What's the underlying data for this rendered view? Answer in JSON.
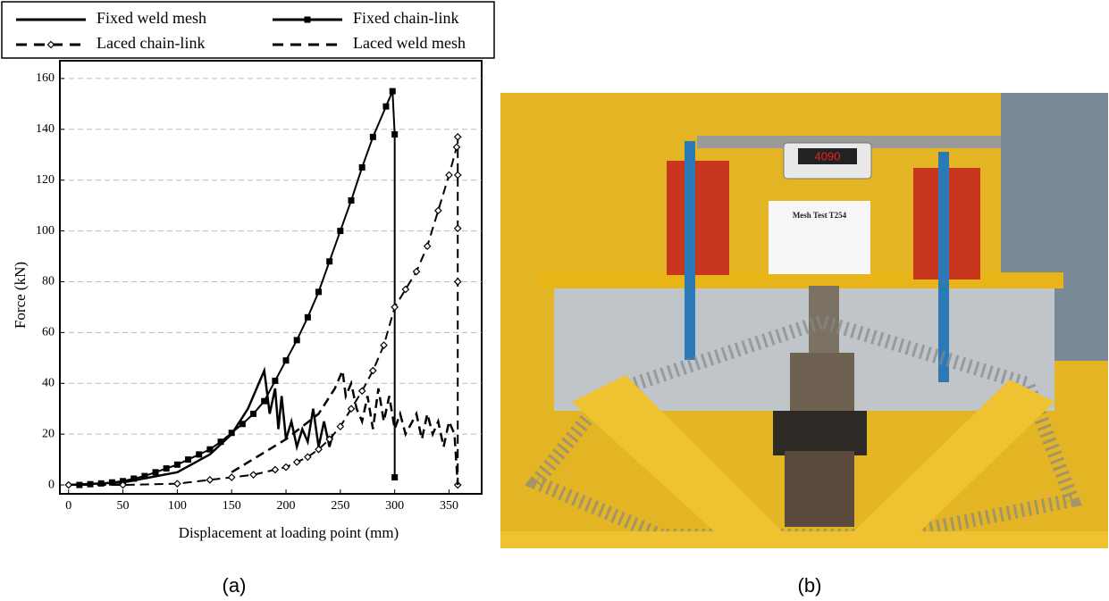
{
  "chart_data": {
    "type": "line",
    "xlabel": "Displacement at loading point (mm)",
    "ylabel": "Force (kN)",
    "xlim": [
      -8,
      380
    ],
    "ylim": [
      -3.5,
      167
    ],
    "xticks": [
      0,
      50,
      100,
      150,
      200,
      250,
      300,
      350
    ],
    "yticks": [
      0,
      20,
      40,
      60,
      80,
      100,
      120,
      140,
      160
    ],
    "grid": true,
    "series": [
      {
        "name": "Fixed weld mesh",
        "color": "#000000",
        "style": "solid",
        "x": [
          0,
          50,
          100,
          130,
          150,
          165,
          175,
          180,
          183,
          185,
          190,
          193,
          196,
          200,
          205,
          210,
          215,
          220,
          225,
          230,
          235,
          240,
          243
        ],
        "values": [
          0,
          1,
          5,
          12,
          20,
          30,
          40,
          45,
          35,
          28,
          38,
          22,
          35,
          18,
          25,
          15,
          22,
          17,
          30,
          15,
          25,
          15,
          20
        ]
      },
      {
        "name": "Fixed chain-link",
        "color": "#000000",
        "style": "solid",
        "marker": "square",
        "x": [
          10,
          20,
          30,
          40,
          50,
          60,
          70,
          80,
          90,
          100,
          110,
          120,
          130,
          140,
          150,
          160,
          170,
          180,
          190,
          200,
          210,
          220,
          230,
          240,
          250,
          260,
          270,
          280,
          292,
          298,
          300,
          300
        ],
        "values": [
          0,
          0.3,
          0.6,
          1,
          1.5,
          2.5,
          3.5,
          5,
          6.5,
          8,
          10,
          12,
          14,
          17,
          20.5,
          24,
          28,
          33,
          41,
          49,
          57,
          66,
          76,
          88,
          100,
          112,
          125,
          137,
          149,
          155,
          138,
          3
        ]
      },
      {
        "name": "Laced chain-link",
        "color": "#000000",
        "style": "dashed",
        "marker": "diamond",
        "x": [
          0,
          50,
          100,
          130,
          150,
          170,
          190,
          200,
          210,
          220,
          230,
          240,
          250,
          260,
          270,
          280,
          290,
          300,
          310,
          320,
          330,
          340,
          350,
          357,
          358,
          358,
          358,
          358,
          358
        ],
        "values": [
          0,
          0,
          0.5,
          2,
          3,
          4,
          6,
          7,
          9,
          11,
          14,
          18,
          23,
          30,
          37,
          45,
          55,
          70,
          77,
          84,
          94,
          108,
          122,
          133,
          137,
          122,
          101,
          80,
          0
        ]
      },
      {
        "name": "Laced weld mesh",
        "color": "#000000",
        "style": "dashed",
        "x": [
          150,
          200,
          230,
          245,
          252,
          255,
          260,
          265,
          270,
          275,
          280,
          285,
          290,
          295,
          300,
          305,
          310,
          320,
          325,
          330,
          335,
          340,
          345,
          350,
          355,
          358
        ],
        "values": [
          5,
          18,
          28,
          38,
          45,
          35,
          40,
          30,
          25,
          35,
          22,
          38,
          25,
          35,
          22,
          28,
          20,
          28,
          18,
          28,
          20,
          25,
          15,
          25,
          20,
          0
        ]
      }
    ]
  },
  "captions": [
    "(a)",
    "(b)"
  ],
  "photo_texts": [
    "Mesh Test T254",
    "4090"
  ]
}
